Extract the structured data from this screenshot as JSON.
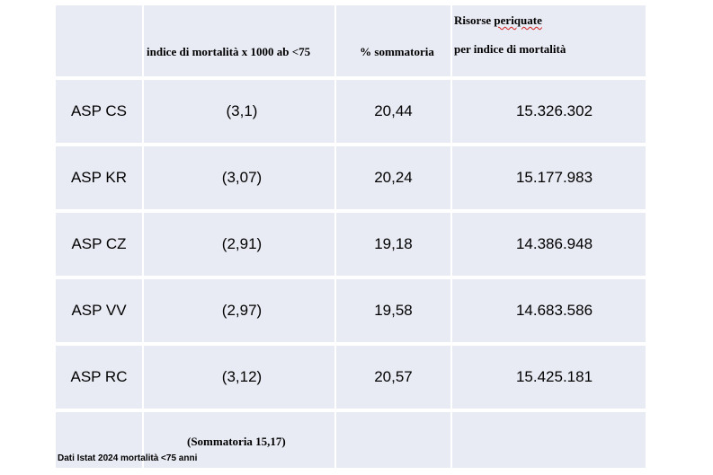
{
  "table": {
    "headers": {
      "mortality_index": "indice di mortalità x 1000 ab <75",
      "percent_sum": "% sommatoria",
      "resources_line1": "Risorse periquate",
      "resources_line2": "per indice di mortalità"
    },
    "rows": [
      {
        "asp": "ASP CS",
        "index": "(3,1)",
        "percent": "20,44",
        "resources": "15.326.302"
      },
      {
        "asp": "ASP KR",
        "index": "(3,07)",
        "percent": "20,24",
        "resources": "15.177.983"
      },
      {
        "asp": "ASP CZ",
        "index": "(2,91)",
        "percent": "19,18",
        "resources": "14.386.948"
      },
      {
        "asp": "ASP VV",
        "index": "(2,97)",
        "percent": "19,58",
        "resources": "14.683.586"
      },
      {
        "asp": "ASP RC",
        "index": "(3,12)",
        "percent": "20,57",
        "resources": "15.425.181"
      }
    ],
    "total": "(Sommatoria 15,17)"
  },
  "footer": "Dati Istat 2024 mortalità <75 anni"
}
